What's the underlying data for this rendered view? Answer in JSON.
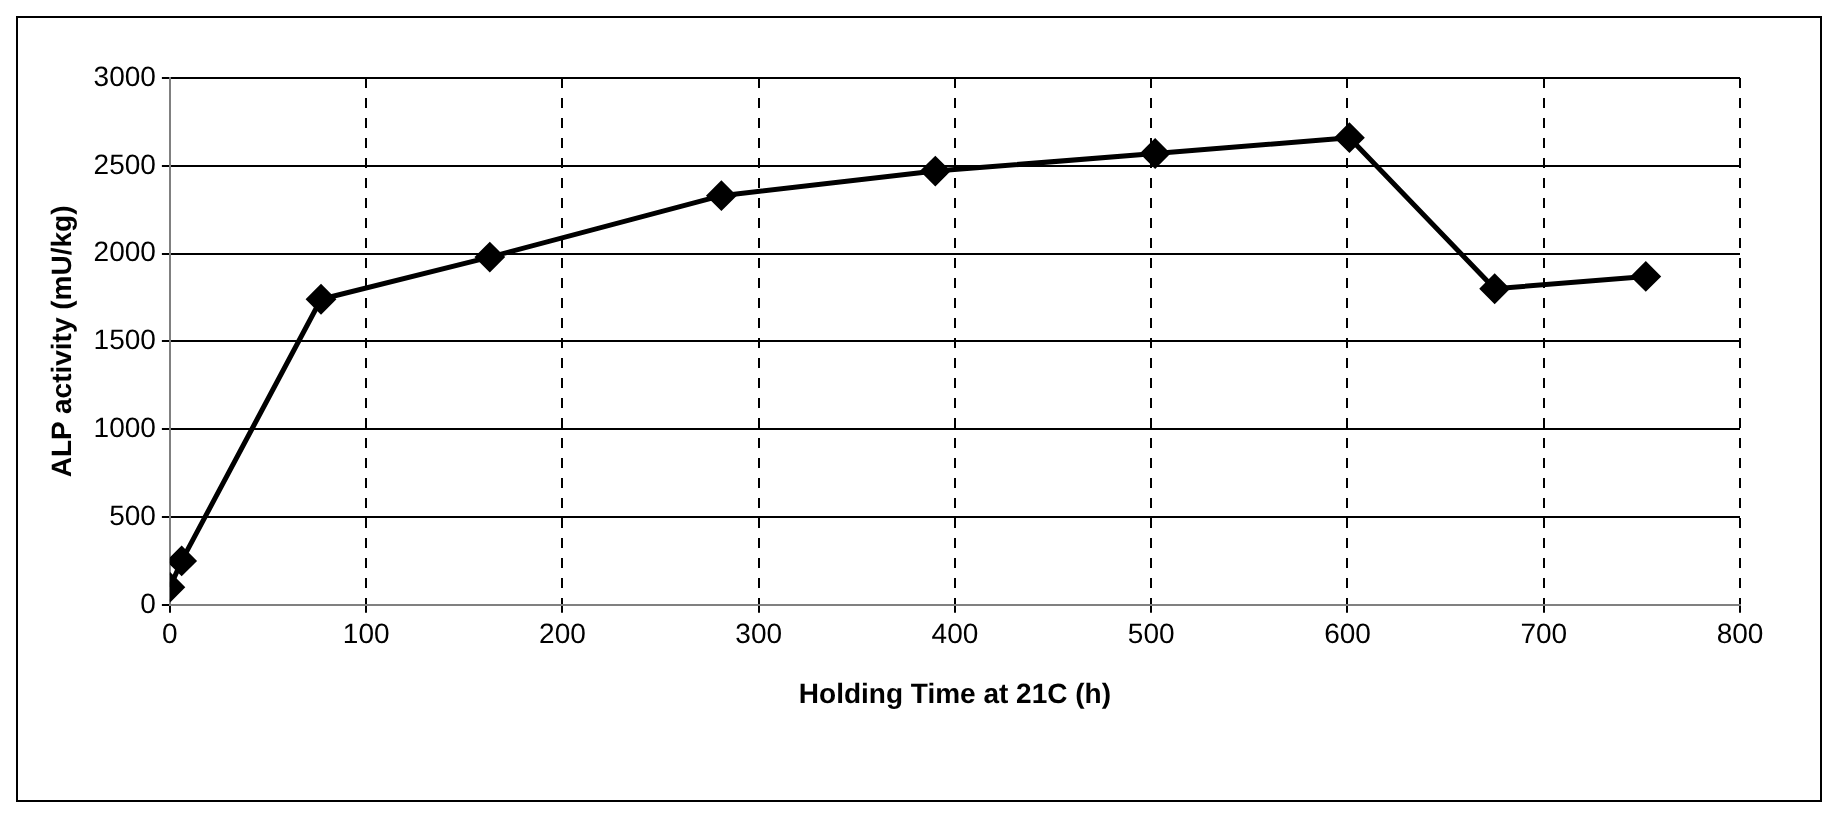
{
  "chart_data": {
    "type": "line",
    "xlabel": "Holding Time at 21C (h)",
    "ylabel": "ALP activity (mU/kg)",
    "x": [
      0,
      6,
      77,
      163,
      281,
      390,
      502,
      601,
      675,
      752
    ],
    "series": [
      {
        "color": "#000000",
        "values": [
          100,
          250,
          1740,
          1980,
          2330,
          2470,
          2570,
          2660,
          1800,
          1870
        ]
      }
    ],
    "xlim": [
      0,
      800
    ],
    "xticks": [
      0,
      100,
      200,
      300,
      400,
      500,
      600,
      700,
      800
    ],
    "ylim": [
      0,
      3000
    ],
    "yticks": [
      0,
      500,
      1000,
      1500,
      2000,
      2500,
      3000
    ],
    "grid": true,
    "legend": false,
    "marker": "diamond",
    "line_style": "solid"
  }
}
